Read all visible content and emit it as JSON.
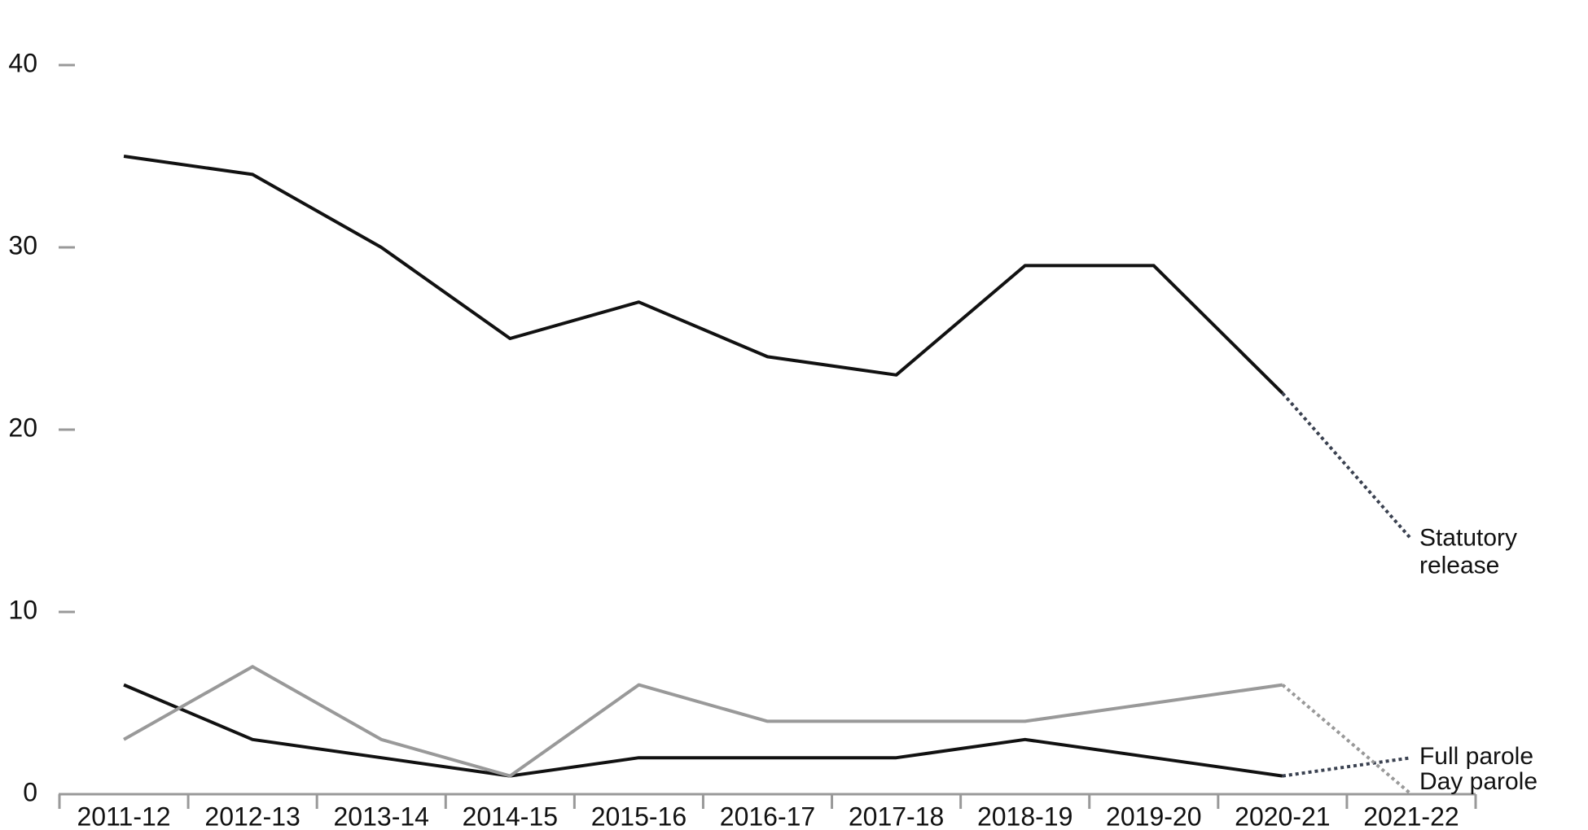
{
  "chart_data": {
    "type": "line",
    "categories": [
      "2011-12",
      "2012-13",
      "2013-14",
      "2014-15",
      "2015-16",
      "2016-17",
      "2017-18",
      "2018-19",
      "2019-20",
      "2020-21",
      "2021-22"
    ],
    "series": [
      {
        "name": "Statutory release",
        "color": "#111111",
        "values": [
          35,
          34,
          30,
          25,
          27,
          24,
          23,
          29,
          29,
          22,
          14
        ]
      },
      {
        "name": "Full parole",
        "color": "#111111",
        "values": [
          6,
          3,
          2,
          1,
          2,
          2,
          2,
          3,
          2,
          1,
          2
        ]
      },
      {
        "name": "Day parole",
        "color": "#999999",
        "values": [
          3,
          7,
          3,
          1,
          6,
          4,
          4,
          4,
          5,
          6,
          0
        ]
      }
    ],
    "ylim": [
      0,
      40
    ],
    "yticks": [
      0,
      10,
      20,
      30,
      40
    ],
    "grid": false
  }
}
